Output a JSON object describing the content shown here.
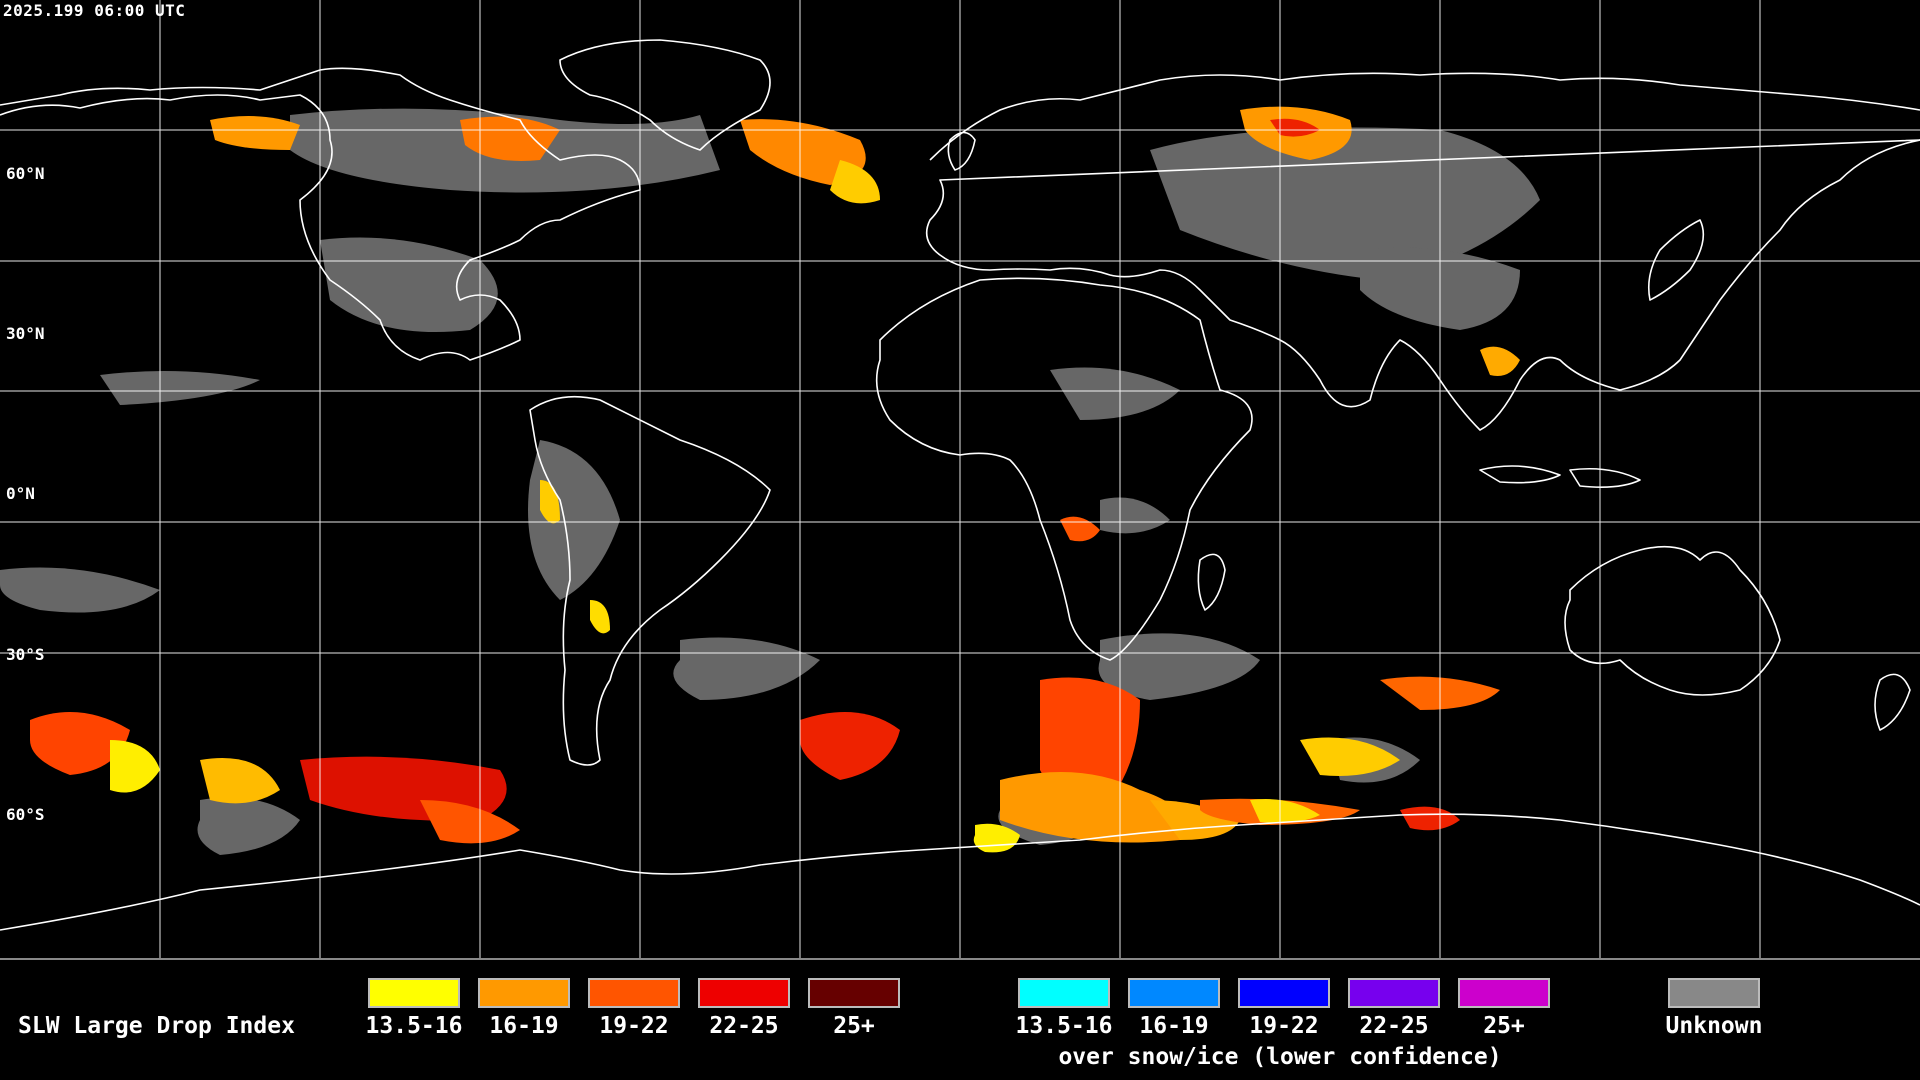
{
  "map": {
    "timestamp": "2025.199 06:00 UTC",
    "lat_labels": [
      "60°N",
      "30°N",
      "0°N",
      "30°S",
      "60°S"
    ],
    "background_color": "#000000",
    "grid_color": "#ffffff",
    "coastline_color": "#ffffff"
  },
  "legend": {
    "title": "SLW Large Drop Index",
    "primary": [
      {
        "label": "13.5-16",
        "color": "#ffff00"
      },
      {
        "label": "16-19",
        "color": "#ff9900"
      },
      {
        "label": "19-22",
        "color": "#ff5500"
      },
      {
        "label": "22-25",
        "color": "#ee0000"
      },
      {
        "label": "25+",
        "color": "#660000"
      }
    ],
    "snow_ice": [
      {
        "label": "13.5-16",
        "color": "#00ffff"
      },
      {
        "label": "16-19",
        "color": "#0088ff"
      },
      {
        "label": "19-22",
        "color": "#0000ff"
      },
      {
        "label": "22-25",
        "color": "#7700ee"
      },
      {
        "label": "25+",
        "color": "#cc00cc"
      }
    ],
    "snow_ice_caption": "over snow/ice (lower confidence)",
    "unknown": {
      "label": "Unknown",
      "color": "#888888"
    }
  }
}
